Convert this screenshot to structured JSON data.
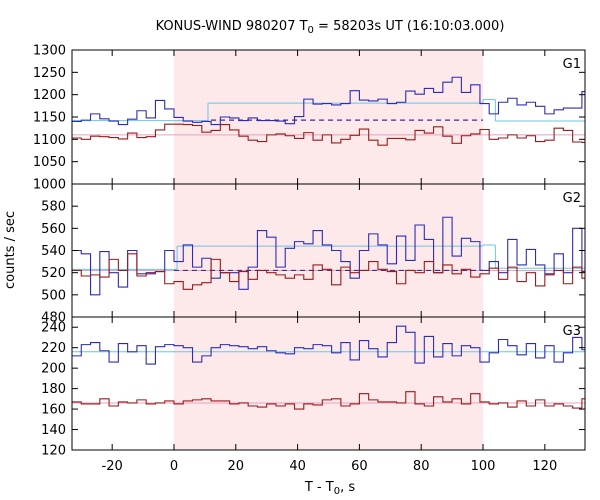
{
  "chart_data": {
    "type": "line",
    "title": {
      "prefix": "KONUS-WIND 980207 T",
      "sub": "0",
      "suffix": " = 58203s UT (16:10:03.000)"
    },
    "xlabel": {
      "prefix": "T - T",
      "sub": "0",
      "suffix": ", s"
    },
    "ylabel": "counts / sec",
    "xlim": [
      -33,
      133
    ],
    "xticks": [
      -20,
      0,
      20,
      40,
      60,
      80,
      100,
      120
    ],
    "highlight_interval": [
      0,
      100
    ],
    "highlight_color": "#fde8ea",
    "bin_width": 3,
    "colors": {
      "high": "#2c2cb8",
      "low": "#9b1a1a",
      "fit_high": "#6cc5e6",
      "fit_low": "#e8a0c0",
      "dashed": "#3a2ba0"
    },
    "panels": [
      {
        "name": "G1",
        "ylim": [
          1000,
          1300
        ],
        "yticks": [
          1000,
          1050,
          1100,
          1150,
          1200,
          1250,
          1300
        ],
        "series": [
          {
            "color_key": "high",
            "x_start": -33,
            "values": [
              1140,
              1143,
              1157,
              1146,
              1141,
              1133,
              1145,
              1164,
              1148,
              1187,
              1168,
              1149,
              1141,
              1138,
              1140,
              1133,
              1150,
              1148,
              1142,
              1148,
              1142,
              1142,
              1141,
              1135,
              1151,
              1190,
              1179,
              1180,
              1177,
              1180,
              1209,
              1188,
              1186,
              1190,
              1180,
              1183,
              1208,
              1201,
              1214,
              1205,
              1228,
              1239,
              1205,
              1222,
              1180,
              1157,
              1183,
              1192,
              1177,
              1183,
              1174,
              1157,
              1166,
              1170,
              1170,
              1207,
              1208,
              1165,
              1178,
              1182,
              1180,
              1181,
              1197,
              1180,
              1170,
              1148,
              1163,
              1147,
              1152,
              1145,
              1148,
              1155,
              1137,
              1154,
              1148,
              1144,
              1157,
              1166,
              1147,
              1141,
              1140,
              1143,
              1140,
              1136,
              1135,
              1142,
              1143,
              1141,
              1140,
              1141,
              1142
            ]
          },
          {
            "color_key": "low",
            "x_start": -33,
            "values": [
              1103,
              1100,
              1107,
              1106,
              1104,
              1101,
              1114,
              1104,
              1106,
              1121,
              1134,
              1134,
              1133,
              1131,
              1116,
              1120,
              1133,
              1121,
              1107,
              1098,
              1095,
              1110,
              1112,
              1108,
              1102,
              1115,
              1098,
              1110,
              1092,
              1100,
              1109,
              1123,
              1098,
              1087,
              1102,
              1102,
              1099,
              1120,
              1114,
              1128,
              1107,
              1091,
              1108,
              1112,
              1122,
              1100,
              1103,
              1110,
              1103,
              1108,
              1095,
              1098,
              1125,
              1120,
              1094,
              1093,
              1121,
              1110,
              1113,
              1099,
              1107,
              1119,
              1120,
              1095,
              1108,
              1107,
              1094,
              1101,
              1113,
              1133,
              1108,
              1117,
              1114,
              1110,
              1106,
              1113,
              1131,
              1105,
              1106,
              1104,
              1109,
              1113,
              1120,
              1111,
              1106,
              1128,
              1124,
              1116,
              1113,
              1117,
              1116
            ]
          }
        ],
        "fits": [
          {
            "color_key": "fit_high",
            "segments": [
              [
                -33,
                11,
                1142
              ],
              [
                11,
                100,
                1181
              ],
              [
                100,
                104,
                1189
              ],
              [
                104,
                133,
                1141
              ]
            ]
          },
          {
            "color_key": "fit_low",
            "segments": [
              [
                -33,
                133,
                1110
              ]
            ]
          }
        ],
        "dashed": [
          {
            "color_key": "dashed",
            "x0": 12,
            "x1": 100,
            "y": 1143
          }
        ]
      },
      {
        "name": "G2",
        "ylim": [
          480,
          600
        ],
        "yticks": [
          480,
          500,
          520,
          540,
          560,
          580
        ],
        "series": [
          {
            "color_key": "high",
            "x_start": -33,
            "values": [
              540,
              537,
              500,
              539,
              520,
              507,
              540,
              519,
              520,
              521,
              540,
              530,
              545,
              525,
              533,
              515,
              520,
              520,
              505,
              525,
              558,
              552,
              525,
              542,
              548,
              546,
              558,
              545,
              540,
              530,
              515,
              540,
              555,
              545,
              528,
              553,
              531,
              563,
              550,
              520,
              570,
              535,
              551,
              548,
              522,
              530,
              520,
              550,
              527,
              541,
              527,
              519,
              537,
              520,
              560,
              521,
              549,
              549,
              537,
              525,
              548,
              515,
              523,
              540,
              537,
              522,
              540,
              519,
              527,
              525,
              552,
              538,
              510,
              515,
              530,
              526,
              540,
              538,
              541,
              520,
              545,
              548,
              521,
              537,
              520,
              530,
              542,
              516,
              514,
              532,
              525
            ]
          },
          {
            "color_key": "low",
            "x_start": -33,
            "values": [
              522,
              517,
              518,
              516,
              532,
              522,
              537,
              517,
              519,
              521,
              510,
              512,
              505,
              509,
              511,
              532,
              520,
              512,
              521,
              514,
              522,
              520,
              518,
              515,
              518,
              514,
              527,
              523,
              509,
              525,
              520,
              522,
              530,
              523,
              521,
              510,
              522,
              520,
              530,
              520,
              527,
              519,
              523,
              516,
              519,
              524,
              514,
              525,
              512,
              520,
              508,
              518,
              522,
              510,
              525,
              515,
              526,
              519,
              524,
              510,
              521,
              516,
              522,
              518,
              515,
              525,
              514,
              519,
              523,
              517,
              520,
              513,
              518,
              510,
              519,
              521,
              517,
              511,
              519,
              520,
              524,
              522,
              517,
              513,
              519,
              525,
              520,
              521,
              523,
              516,
              519
            ]
          }
        ],
        "fits": [
          {
            "color_key": "fit_high",
            "segments": [
              [
                -33,
                1,
                523
              ],
              [
                1,
                100,
                544
              ],
              [
                100,
                104,
                545
              ],
              [
                104,
                133,
                524
              ]
            ]
          },
          {
            "color_key": "fit_low",
            "segments": [
              [
                -33,
                133,
                522
              ]
            ]
          }
        ],
        "dashed": [
          {
            "color_key": "dashed",
            "x0": 0,
            "x1": 100,
            "y": 522
          }
        ]
      },
      {
        "name": "G3",
        "ylim": [
          120,
          250
        ],
        "yticks": [
          120,
          140,
          160,
          180,
          200,
          220,
          240
        ],
        "series": [
          {
            "color_key": "high",
            "x_start": -33,
            "values": [
              212,
              223,
              225,
              217,
              206,
              224,
              216,
              222,
              204,
              221,
              223,
              222,
              220,
              206,
              212,
              220,
              223,
              222,
              221,
              219,
              221,
              217,
              215,
              214,
              220,
              219,
              223,
              222,
              215,
              225,
              208,
              227,
              219,
              211,
              225,
              241,
              235,
              205,
              231,
              211,
              224,
              212,
              222,
              220,
              206,
              215,
              228,
              222,
              213,
              224,
              210,
              222,
              206,
              215,
              230,
              218,
              211,
              216,
              204,
              222,
              198,
              220,
              226,
              218,
              222,
              213,
              225,
              224,
              211,
              218,
              213,
              222,
              224,
              210,
              220,
              222,
              215,
              213,
              224,
              217,
              220,
              226,
              212,
              220,
              217,
              223,
              228,
              215,
              213,
              220,
              206
            ]
          },
          {
            "color_key": "low",
            "x_start": -33,
            "values": [
              167,
              165,
              165,
              170,
              163,
              167,
              166,
              169,
              165,
              166,
              168,
              165,
              168,
              169,
              170,
              168,
              168,
              165,
              166,
              163,
              162,
              165,
              163,
              165,
              160,
              165,
              164,
              169,
              170,
              163,
              165,
              175,
              169,
              167,
              167,
              166,
              177,
              165,
              163,
              172,
              167,
              170,
              165,
              175,
              167,
              165,
              166,
              162,
              168,
              163,
              169,
              163,
              165,
              163,
              161,
              170,
              163,
              168,
              166,
              166,
              171,
              168,
              165,
              165,
              170,
              163,
              164,
              163,
              157,
              164,
              161,
              168,
              163,
              160,
              164,
              166,
              166,
              165,
              164,
              163,
              165,
              162,
              163,
              162,
              160,
              165,
              164,
              165,
              162,
              164,
              163
            ]
          }
        ],
        "fits": [
          {
            "color_key": "fit_high",
            "segments": [
              [
                -33,
                133,
                216
              ]
            ]
          },
          {
            "color_key": "fit_low",
            "segments": [
              [
                -33,
                133,
                166
              ]
            ]
          }
        ],
        "dashed": []
      }
    ]
  }
}
